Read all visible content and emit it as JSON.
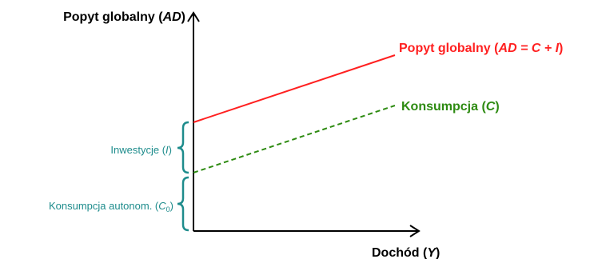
{
  "axes": {
    "y_label": {
      "prefix": "Popyt globalny (",
      "italic": "AD",
      "suffix": ")"
    },
    "x_label": {
      "prefix": "Dochód (",
      "italic": "Y",
      "suffix": ")"
    }
  },
  "lines": {
    "ad": {
      "label": {
        "prefix": "Popyt globalny (",
        "italic": "AD = C + I",
        "suffix": ")"
      },
      "color": "#ff2020",
      "style": "solid"
    },
    "c": {
      "label": {
        "prefix": "Konsumpcja (",
        "italic": "C",
        "suffix": ")"
      },
      "color": "#2e8b12",
      "style": "dashed"
    }
  },
  "braces": {
    "investment": {
      "prefix": "Inwestycje (",
      "italic": "I",
      "suffix": ")",
      "color": "#1e8c8c"
    },
    "autonomous": {
      "prefix": "Konsumpcja autonom. (",
      "italic": "C",
      "subscript": "0",
      "suffix": ")",
      "color": "#1e8c8c"
    }
  }
}
